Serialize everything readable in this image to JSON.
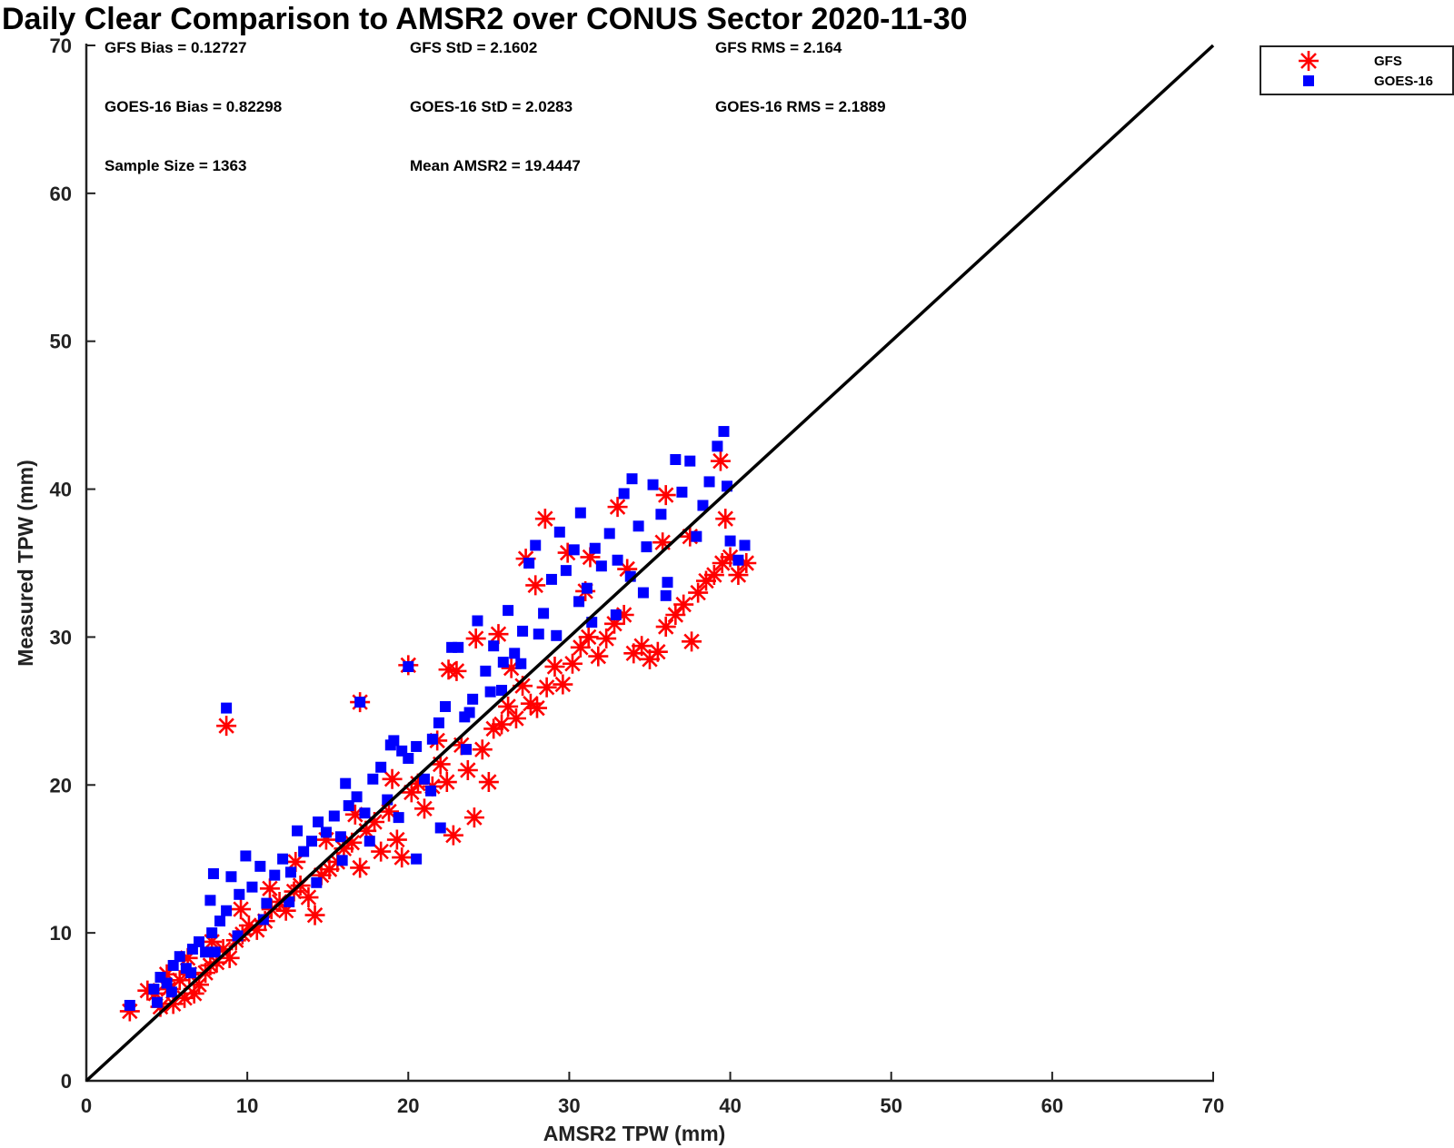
{
  "chart_data": {
    "type": "scatter",
    "title": "Daily Clear Comparison to AMSR2 over CONUS Sector 2020-11-30",
    "xlabel": "AMSR2 TPW (mm)",
    "ylabel": "Measured TPW (mm)",
    "xlim": [
      0,
      70
    ],
    "ylim": [
      0,
      70
    ],
    "xticks": [
      "0",
      "10",
      "20",
      "30",
      "40",
      "50",
      "60",
      "70"
    ],
    "yticks": [
      "0",
      "10",
      "20",
      "30",
      "40",
      "50",
      "60",
      "70"
    ],
    "grid": false,
    "legend_position": "outside top-right",
    "reference_line": {
      "x": [
        0,
        70
      ],
      "y": [
        0,
        70
      ],
      "color": "#000000"
    },
    "stats": [
      "GFS Bias = 0.12727",
      "GFS StD = 2.1602",
      "GFS RMS = 2.164",
      "GOES-16 Bias = 0.82298",
      "GOES-16 StD = 2.0283",
      "GOES-16 RMS = 2.1889",
      "Sample Size = 1363",
      "Mean AMSR2 = 19.4447"
    ],
    "series": [
      {
        "name": "GFS",
        "marker": "asterisk",
        "color": "#ff0000",
        "points": [
          [
            2.7,
            4.7
          ],
          [
            4.3,
            5.9
          ],
          [
            4.6,
            5.0
          ],
          [
            5.1,
            6.2
          ],
          [
            5.4,
            5.2
          ],
          [
            5.8,
            6.8
          ],
          [
            6.1,
            5.6
          ],
          [
            6.4,
            7.2
          ],
          [
            6.7,
            5.9
          ],
          [
            7.0,
            6.5
          ],
          [
            7.4,
            7.3
          ],
          [
            7.7,
            7.8
          ],
          [
            8.1,
            8.0
          ],
          [
            8.5,
            8.9
          ],
          [
            8.9,
            8.3
          ],
          [
            9.3,
            9.5
          ],
          [
            9.7,
            9.9
          ],
          [
            10.1,
            10.5
          ],
          [
            10.6,
            10.2
          ],
          [
            11.1,
            10.8
          ],
          [
            11.5,
            11.6
          ],
          [
            12.0,
            12.1
          ],
          [
            12.4,
            11.5
          ],
          [
            12.9,
            12.8
          ],
          [
            13.3,
            13.2
          ],
          [
            13.8,
            12.4
          ],
          [
            14.2,
            11.2
          ],
          [
            14.6,
            13.9
          ],
          [
            15.1,
            14.3
          ],
          [
            15.6,
            14.8
          ],
          [
            16.0,
            15.7
          ],
          [
            16.5,
            16.1
          ],
          [
            17.0,
            14.4
          ],
          [
            17.4,
            16.9
          ],
          [
            17.9,
            17.5
          ],
          [
            18.3,
            15.5
          ],
          [
            18.8,
            18.2
          ],
          [
            19.3,
            16.3
          ],
          [
            19.6,
            15.1
          ],
          [
            20.2,
            19.5
          ],
          [
            20.6,
            20.1
          ],
          [
            21.0,
            18.4
          ],
          [
            21.5,
            19.9
          ],
          [
            22.0,
            21.4
          ],
          [
            22.4,
            20.2
          ],
          [
            22.8,
            16.6
          ],
          [
            23.3,
            22.7
          ],
          [
            23.7,
            21.0
          ],
          [
            24.1,
            17.8
          ],
          [
            24.6,
            22.4
          ],
          [
            25.0,
            20.2
          ],
          [
            25.3,
            23.8
          ],
          [
            25.8,
            24.1
          ],
          [
            26.2,
            25.3
          ],
          [
            26.7,
            24.5
          ],
          [
            27.1,
            26.7
          ],
          [
            27.6,
            25.5
          ],
          [
            28.0,
            25.2
          ],
          [
            28.6,
            26.6
          ],
          [
            29.1,
            28.0
          ],
          [
            29.6,
            26.8
          ],
          [
            30.2,
            28.2
          ],
          [
            30.7,
            29.3
          ],
          [
            31.2,
            30.0
          ],
          [
            31.8,
            28.7
          ],
          [
            32.3,
            29.9
          ],
          [
            32.8,
            30.9
          ],
          [
            33.4,
            31.5
          ],
          [
            34.0,
            28.9
          ],
          [
            34.5,
            29.4
          ],
          [
            35.0,
            28.5
          ],
          [
            35.5,
            29.0
          ],
          [
            36.0,
            30.7
          ],
          [
            36.6,
            31.5
          ],
          [
            37.1,
            32.2
          ],
          [
            37.6,
            29.7
          ],
          [
            38.0,
            33.0
          ],
          [
            38.5,
            33.8
          ],
          [
            39.0,
            34.2
          ],
          [
            39.5,
            35.0
          ],
          [
            40.0,
            35.4
          ],
          [
            40.5,
            34.2
          ],
          [
            41.0,
            35.0
          ],
          [
            39.7,
            38.0
          ],
          [
            39.4,
            41.9
          ],
          [
            36.0,
            39.6
          ],
          [
            33.0,
            38.8
          ],
          [
            28.5,
            38.0
          ],
          [
            27.3,
            35.3
          ],
          [
            24.2,
            29.9
          ],
          [
            22.5,
            27.8
          ],
          [
            20.0,
            28.1
          ],
          [
            17.0,
            25.6
          ],
          [
            8.7,
            24.0
          ],
          [
            23.0,
            27.7
          ],
          [
            25.6,
            30.2
          ],
          [
            27.9,
            33.5
          ],
          [
            29.9,
            35.7
          ],
          [
            31.3,
            35.4
          ],
          [
            35.8,
            36.4
          ],
          [
            37.5,
            36.8
          ],
          [
            33.6,
            34.6
          ],
          [
            31.0,
            33.1
          ],
          [
            26.4,
            27.9
          ],
          [
            21.8,
            23.0
          ],
          [
            19.0,
            20.4
          ],
          [
            16.7,
            18.0
          ],
          [
            14.9,
            16.3
          ],
          [
            13.0,
            14.8
          ],
          [
            11.4,
            13.0
          ],
          [
            9.6,
            11.6
          ],
          [
            7.8,
            9.4
          ],
          [
            6.3,
            8.3
          ],
          [
            5.0,
            7.2
          ],
          [
            3.8,
            6.1
          ]
        ]
      },
      {
        "name": "GOES-16",
        "marker": "square",
        "color": "#0000ff",
        "points": [
          [
            2.7,
            5.1
          ],
          [
            4.2,
            6.2
          ],
          [
            4.6,
            7.0
          ],
          [
            5.0,
            6.6
          ],
          [
            5.4,
            7.8
          ],
          [
            5.8,
            8.4
          ],
          [
            6.2,
            7.6
          ],
          [
            6.6,
            8.9
          ],
          [
            7.0,
            9.4
          ],
          [
            7.4,
            8.7
          ],
          [
            7.8,
            10.0
          ],
          [
            7.7,
            12.2
          ],
          [
            7.9,
            14.0
          ],
          [
            8.3,
            10.8
          ],
          [
            8.7,
            11.5
          ],
          [
            9.0,
            13.8
          ],
          [
            9.5,
            12.6
          ],
          [
            9.9,
            15.2
          ],
          [
            10.3,
            13.1
          ],
          [
            10.8,
            14.5
          ],
          [
            11.2,
            12.0
          ],
          [
            11.7,
            13.9
          ],
          [
            12.2,
            15.0
          ],
          [
            12.7,
            14.1
          ],
          [
            13.1,
            16.9
          ],
          [
            13.5,
            15.5
          ],
          [
            14.0,
            16.2
          ],
          [
            14.4,
            17.5
          ],
          [
            14.9,
            16.8
          ],
          [
            15.4,
            17.9
          ],
          [
            15.8,
            16.5
          ],
          [
            16.3,
            18.6
          ],
          [
            16.8,
            19.2
          ],
          [
            17.3,
            18.1
          ],
          [
            17.8,
            20.4
          ],
          [
            18.3,
            21.2
          ],
          [
            18.7,
            19.0
          ],
          [
            19.1,
            23.0
          ],
          [
            19.6,
            22.3
          ],
          [
            20.0,
            21.8
          ],
          [
            20.5,
            22.6
          ],
          [
            21.0,
            20.4
          ],
          [
            21.5,
            23.1
          ],
          [
            21.9,
            24.2
          ],
          [
            22.3,
            25.3
          ],
          [
            22.7,
            29.3
          ],
          [
            23.1,
            29.3
          ],
          [
            23.5,
            24.6
          ],
          [
            24.0,
            25.8
          ],
          [
            24.3,
            31.1
          ],
          [
            24.8,
            27.7
          ],
          [
            25.3,
            29.4
          ],
          [
            25.8,
            26.4
          ],
          [
            26.2,
            31.8
          ],
          [
            26.6,
            28.9
          ],
          [
            27.1,
            30.4
          ],
          [
            27.5,
            35.0
          ],
          [
            27.9,
            36.2
          ],
          [
            28.4,
            31.6
          ],
          [
            28.9,
            33.9
          ],
          [
            29.4,
            37.1
          ],
          [
            29.8,
            34.5
          ],
          [
            30.3,
            35.9
          ],
          [
            30.7,
            38.4
          ],
          [
            31.1,
            33.3
          ],
          [
            31.6,
            36.0
          ],
          [
            32.0,
            34.8
          ],
          [
            32.5,
            37.0
          ],
          [
            33.0,
            35.2
          ],
          [
            33.4,
            39.7
          ],
          [
            33.9,
            40.7
          ],
          [
            34.3,
            37.5
          ],
          [
            34.8,
            36.1
          ],
          [
            35.2,
            40.3
          ],
          [
            35.7,
            38.3
          ],
          [
            36.1,
            33.7
          ],
          [
            36.6,
            42.0
          ],
          [
            37.0,
            39.8
          ],
          [
            37.5,
            41.9
          ],
          [
            37.9,
            36.8
          ],
          [
            38.3,
            38.9
          ],
          [
            38.7,
            40.5
          ],
          [
            39.2,
            42.9
          ],
          [
            39.6,
            43.9
          ],
          [
            40.0,
            36.5
          ],
          [
            40.5,
            35.2
          ],
          [
            40.9,
            36.2
          ],
          [
            39.8,
            40.2
          ],
          [
            34.6,
            33.0
          ],
          [
            32.9,
            31.5
          ],
          [
            30.6,
            32.4
          ],
          [
            28.1,
            30.2
          ],
          [
            25.9,
            28.3
          ],
          [
            23.6,
            22.4
          ],
          [
            22.0,
            17.1
          ],
          [
            20.5,
            15.0
          ],
          [
            20.0,
            28.0
          ],
          [
            17.0,
            25.6
          ],
          [
            8.7,
            25.2
          ],
          [
            23.8,
            24.9
          ],
          [
            21.4,
            19.6
          ],
          [
            19.4,
            17.8
          ],
          [
            17.6,
            16.2
          ],
          [
            15.9,
            14.9
          ],
          [
            14.3,
            13.4
          ],
          [
            12.6,
            12.1
          ],
          [
            11.0,
            10.9
          ],
          [
            9.4,
            9.8
          ],
          [
            8.0,
            8.7
          ],
          [
            6.5,
            7.3
          ],
          [
            5.3,
            6.0
          ],
          [
            4.4,
            5.3
          ],
          [
            36.0,
            32.8
          ],
          [
            33.8,
            34.1
          ],
          [
            31.4,
            31.0
          ],
          [
            29.2,
            30.1
          ],
          [
            27.0,
            28.2
          ],
          [
            25.1,
            26.3
          ],
          [
            18.9,
            22.7
          ],
          [
            16.1,
            20.1
          ]
        ]
      }
    ]
  }
}
